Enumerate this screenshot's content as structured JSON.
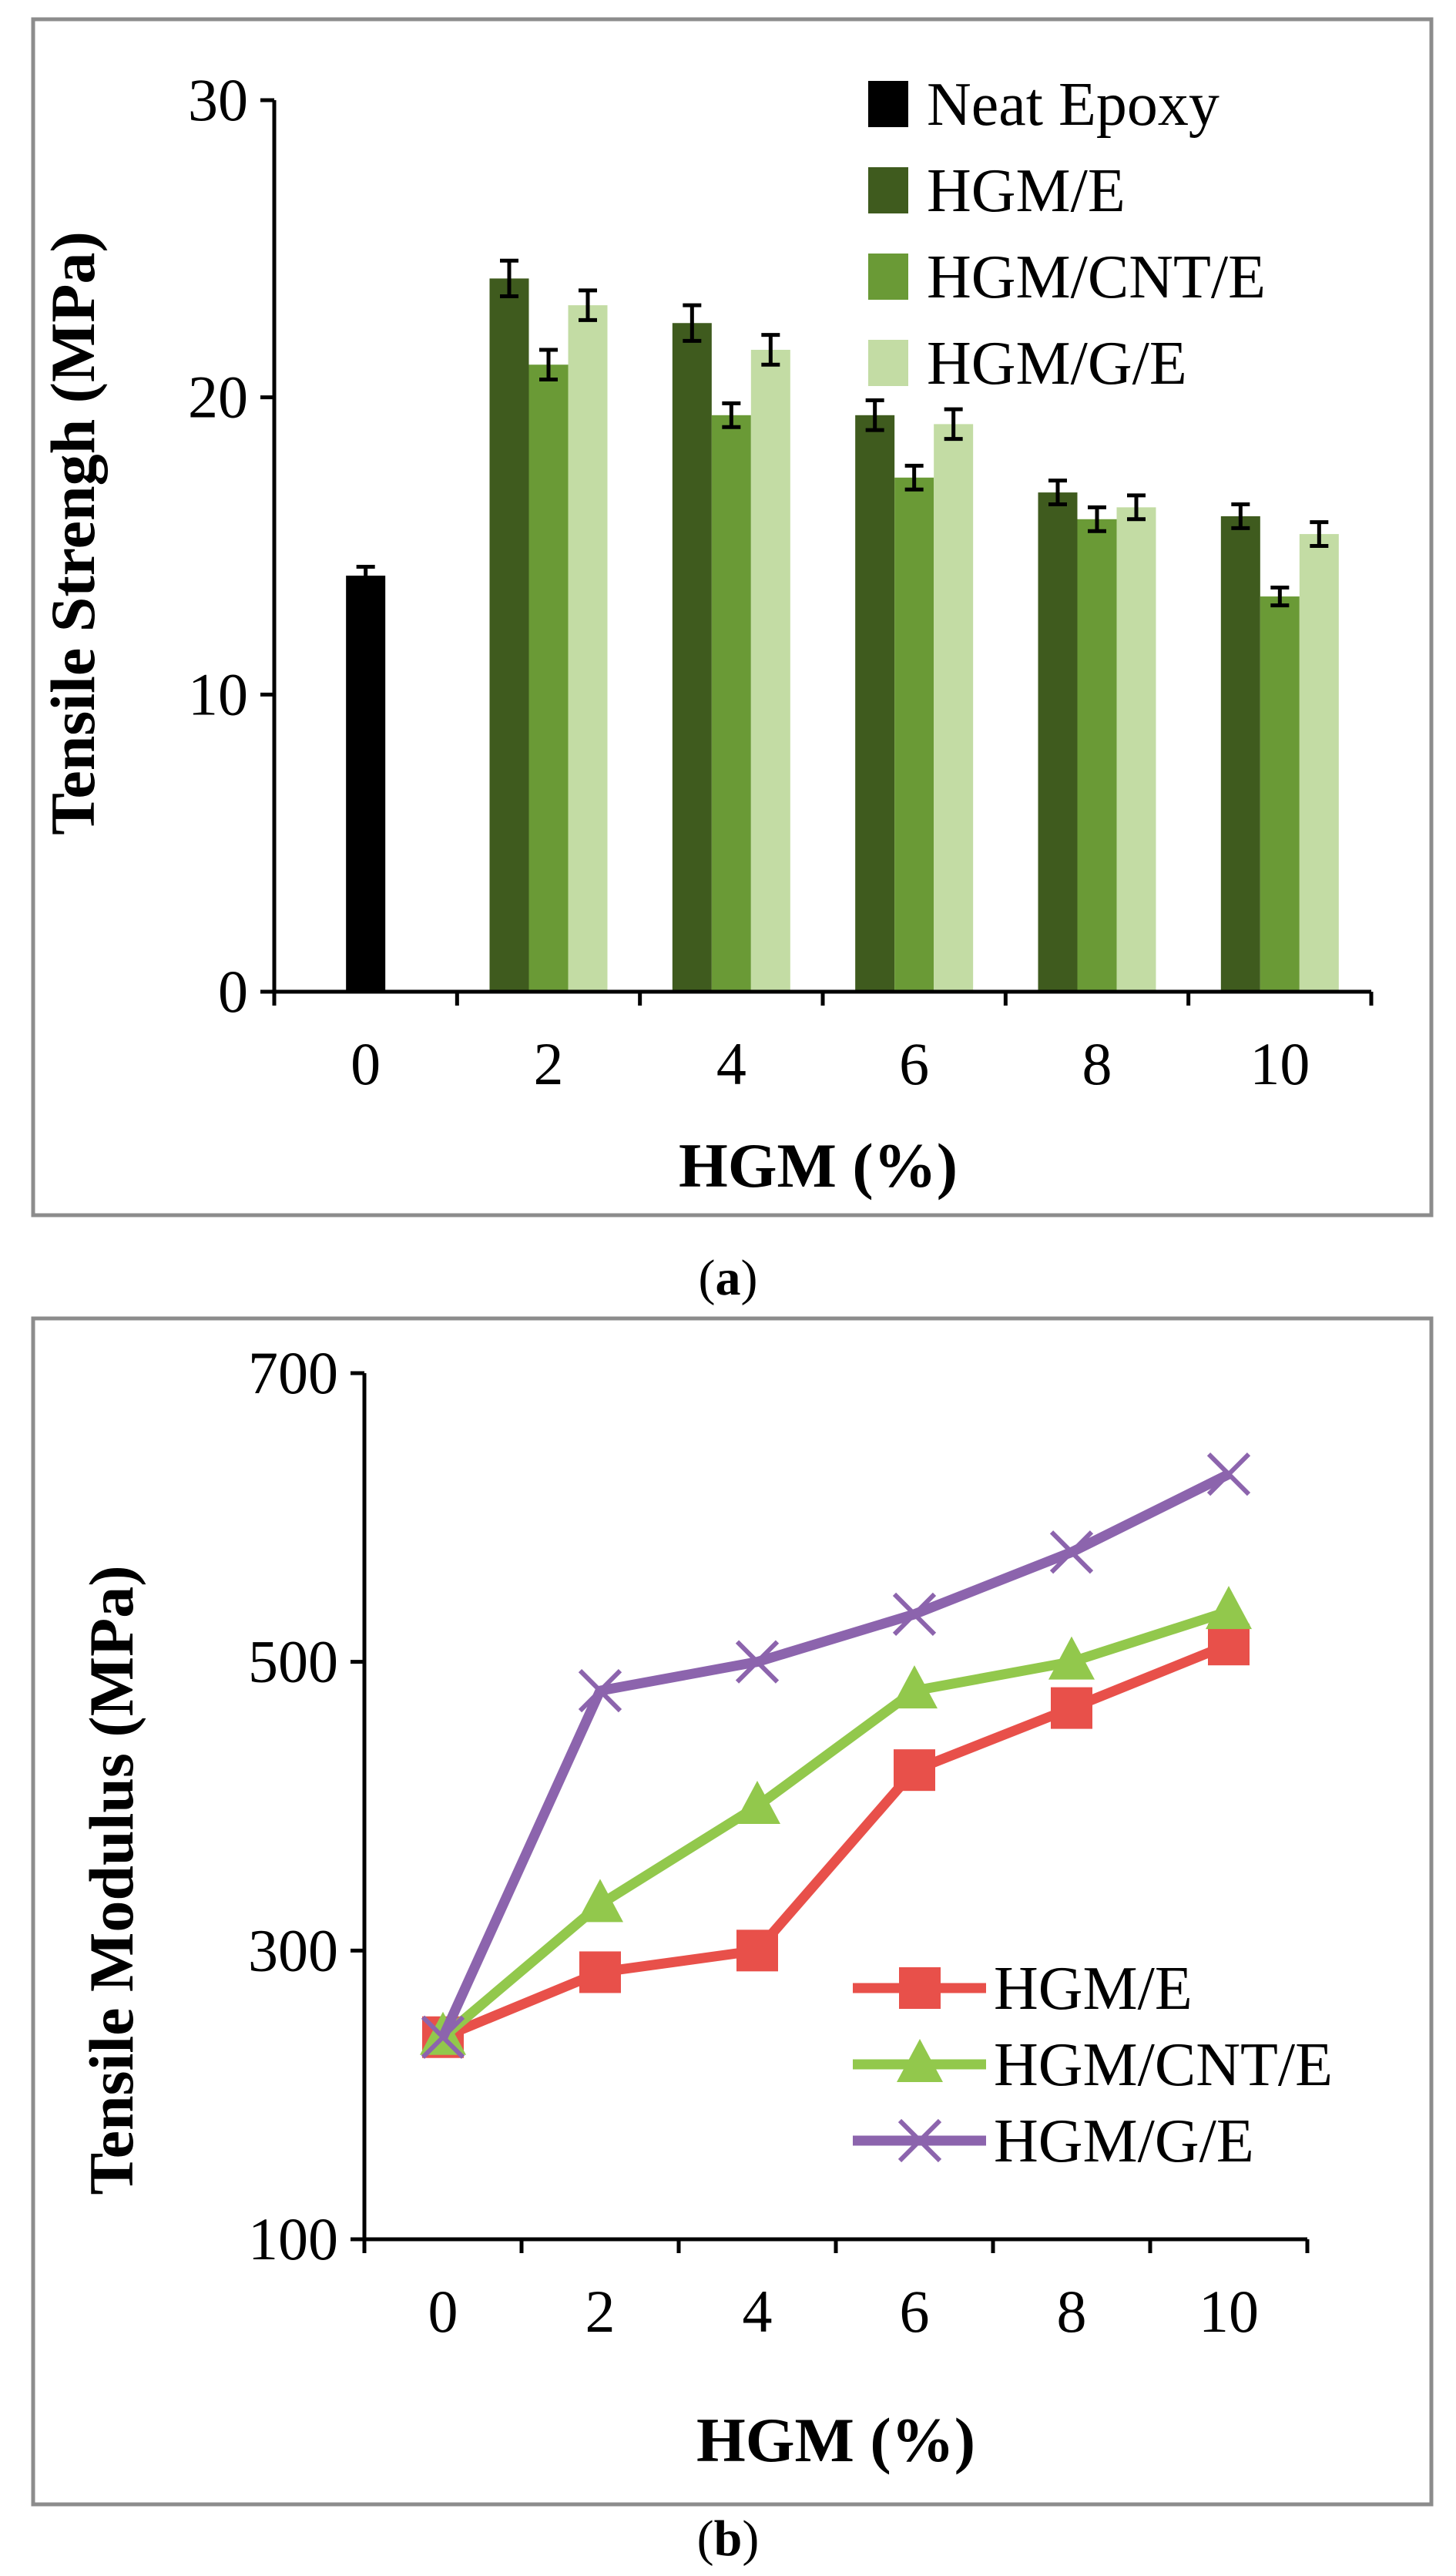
{
  "chart_data": [
    {
      "type": "bar",
      "panel_label": "a",
      "xlabel": "HGM (%)",
      "ylabel": "Tensile Strengh (MPa)",
      "ylim": [
        0,
        30
      ],
      "yticks": [
        0,
        10,
        20,
        30
      ],
      "categories": [
        "0",
        "2",
        "4",
        "6",
        "8",
        "10"
      ],
      "legend_position": "top-right",
      "series": [
        {
          "name": "Neat Epoxy",
          "color": "#000000",
          "values": [
            14.0,
            null,
            null,
            null,
            null,
            null
          ],
          "errors": [
            0.3,
            null,
            null,
            null,
            null,
            null
          ]
        },
        {
          "name": "HGM/E",
          "color": "#3f5b1e",
          "values": [
            null,
            24.0,
            22.5,
            19.4,
            16.8,
            16.0
          ],
          "errors": [
            null,
            0.6,
            0.6,
            0.5,
            0.4,
            0.4
          ]
        },
        {
          "name": "HGM/CNT/E",
          "color": "#6a9a36",
          "values": [
            null,
            21.1,
            19.4,
            17.3,
            15.9,
            13.3
          ],
          "errors": [
            null,
            0.5,
            0.4,
            0.4,
            0.4,
            0.3
          ]
        },
        {
          "name": "HGM/G/E",
          "color": "#c3dca4",
          "values": [
            null,
            23.1,
            21.6,
            19.1,
            16.3,
            15.4
          ],
          "errors": [
            null,
            0.5,
            0.5,
            0.5,
            0.4,
            0.4
          ]
        }
      ]
    },
    {
      "type": "line",
      "panel_label": "b",
      "xlabel": "HGM (%)",
      "ylabel": "Tensile Modulus (MPa)",
      "ylim": [
        100,
        700
      ],
      "yticks": [
        100,
        300,
        500,
        700
      ],
      "categories": [
        "0",
        "2",
        "4",
        "6",
        "8",
        "10"
      ],
      "legend_position": "bottom-right",
      "series": [
        {
          "name": "HGM/E",
          "color": "#e8504a",
          "marker": "square",
          "values": [
            240,
            285,
            300,
            425,
            468,
            512
          ]
        },
        {
          "name": "HGM/CNT/E",
          "color": "#92c84c",
          "marker": "triangle",
          "values": [
            240,
            332,
            400,
            480,
            500,
            535
          ]
        },
        {
          "name": "HGM/G/E",
          "color": "#8c64ad",
          "marker": "x",
          "values": [
            240,
            480,
            500,
            533,
            576,
            630
          ]
        }
      ]
    }
  ]
}
